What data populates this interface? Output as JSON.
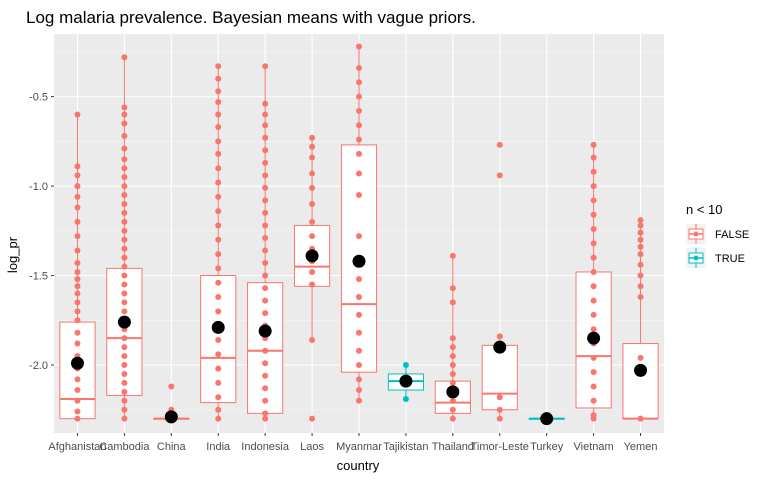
{
  "chart_data": {
    "type": "boxplot",
    "title": "Log malaria prevalence. Bayesian means with vague priors.",
    "xlabel": "country",
    "ylabel": "log_pr",
    "ylim": [
      -2.38,
      -0.15
    ],
    "yticks": [
      -2.0,
      -1.5,
      -1.0,
      -0.5
    ],
    "ytick_labels": [
      "-2.0",
      "-1.5",
      "-1.0",
      "-0.5"
    ],
    "grid": true,
    "legend": {
      "title": "n < 10",
      "position": "right",
      "entries": [
        {
          "label": "FALSE",
          "color": "#F8766D"
        },
        {
          "label": "TRUE",
          "color": "#00BFC4"
        }
      ]
    },
    "colors": {
      "FALSE": "#F8766D",
      "TRUE": "#00BFC4",
      "mean": "#000000",
      "panel": "#EBEBEB"
    },
    "categories": [
      "Afghanistan",
      "Cambodia",
      "China",
      "India",
      "Indonesia",
      "Laos",
      "Myanmar",
      "Tajikistan",
      "Thailand",
      "Timor-Leste",
      "Turkey",
      "Vietnam",
      "Yemen"
    ],
    "boxes": [
      {
        "country": "Afghanistan",
        "group": "FALSE",
        "whisker_low": -2.3,
        "q1": -2.3,
        "median": -2.19,
        "q3": -1.76,
        "whisker_high": -0.6,
        "mean": -1.99,
        "points": [
          -0.6,
          -0.89,
          -0.94,
          -1.0,
          -1.06,
          -1.12,
          -1.2,
          -1.28,
          -1.36,
          -1.43,
          -1.48,
          -1.52,
          -1.56,
          -1.6,
          -1.65,
          -1.7,
          -1.75,
          -1.82,
          -1.88,
          -1.95,
          -2.02,
          -2.08,
          -2.14,
          -2.2,
          -2.26,
          -2.3
        ]
      },
      {
        "country": "Cambodia",
        "group": "FALSE",
        "whisker_low": -2.3,
        "q1": -2.17,
        "median": -1.85,
        "q3": -1.46,
        "whisker_high": -0.28,
        "mean": -1.76,
        "points": [
          -0.28,
          -0.56,
          -0.6,
          -0.65,
          -0.72,
          -0.79,
          -0.85,
          -0.9,
          -0.95,
          -1.0,
          -1.05,
          -1.1,
          -1.15,
          -1.2,
          -1.25,
          -1.3,
          -1.35,
          -1.4,
          -1.45,
          -1.5,
          -1.55,
          -1.6,
          -1.65,
          -1.7,
          -1.75,
          -1.8,
          -1.85,
          -1.9,
          -1.95,
          -2.0,
          -2.05,
          -2.1,
          -2.15,
          -2.2,
          -2.25,
          -2.3
        ]
      },
      {
        "country": "China",
        "group": "FALSE",
        "whisker_low": -2.3,
        "q1": -2.3,
        "median": -2.3,
        "q3": -2.3,
        "whisker_high": -2.3,
        "mean": -2.29,
        "points": [
          -2.12,
          -2.25,
          -2.28,
          -2.3
        ]
      },
      {
        "country": "India",
        "group": "FALSE",
        "whisker_low": -2.3,
        "q1": -2.21,
        "median": -1.96,
        "q3": -1.5,
        "whisker_high": -0.33,
        "mean": -1.79,
        "points": [
          -0.33,
          -0.4,
          -0.47,
          -0.53,
          -0.6,
          -0.67,
          -0.75,
          -0.82,
          -0.9,
          -0.98,
          -1.06,
          -1.14,
          -1.22,
          -1.3,
          -1.38,
          -1.46,
          -1.54,
          -1.62,
          -1.7,
          -1.78,
          -1.86,
          -1.94,
          -2.02,
          -2.1,
          -2.18,
          -2.25,
          -2.3
        ]
      },
      {
        "country": "Indonesia",
        "group": "FALSE",
        "whisker_low": -2.3,
        "q1": -2.27,
        "median": -1.92,
        "q3": -1.54,
        "whisker_high": -0.33,
        "mean": -1.81,
        "points": [
          -0.33,
          -0.54,
          -0.6,
          -0.66,
          -0.73,
          -0.8,
          -0.87,
          -0.94,
          -1.01,
          -1.08,
          -1.15,
          -1.22,
          -1.29,
          -1.36,
          -1.43,
          -1.5,
          -1.57,
          -1.64,
          -1.71,
          -1.78,
          -1.85,
          -1.92,
          -1.99,
          -2.06,
          -2.13,
          -2.2,
          -2.27,
          -2.3
        ]
      },
      {
        "country": "Laos",
        "group": "FALSE",
        "whisker_low": -1.86,
        "q1": -1.56,
        "median": -1.45,
        "q3": -1.22,
        "whisker_high": -0.73,
        "mean": -1.39,
        "points": [
          -0.73,
          -0.78,
          -0.84,
          -0.93,
          -1.01,
          -1.1,
          -1.2,
          -1.28,
          -1.35,
          -1.42,
          -1.48,
          -1.55,
          -1.86,
          -2.3
        ]
      },
      {
        "country": "Myanmar",
        "group": "FALSE",
        "whisker_low": -2.2,
        "q1": -2.04,
        "median": -1.66,
        "q3": -0.77,
        "whisker_high": -0.22,
        "mean": -1.42,
        "points": [
          -0.22,
          -0.34,
          -0.42,
          -0.5,
          -0.58,
          -0.66,
          -0.74,
          -0.82,
          -0.93,
          -1.05,
          -1.28,
          -1.43,
          -1.52,
          -1.62,
          -1.72,
          -1.82,
          -1.92,
          -2.0,
          -2.08,
          -2.14,
          -2.2
        ]
      },
      {
        "country": "Tajikistan",
        "group": "TRUE",
        "whisker_low": -2.19,
        "q1": -2.14,
        "median": -2.09,
        "q3": -2.05,
        "whisker_high": -2.0,
        "mean": -2.09,
        "points": [
          -2.0,
          -2.09,
          -2.19
        ]
      },
      {
        "country": "Thailand",
        "group": "FALSE",
        "whisker_low": -2.3,
        "q1": -2.27,
        "median": -2.21,
        "q3": -2.09,
        "whisker_high": -1.39,
        "mean": -2.15,
        "points": [
          -1.39,
          -1.57,
          -1.65,
          -1.85,
          -1.9,
          -1.95,
          -2.0,
          -2.05,
          -2.1,
          -2.15,
          -2.2,
          -2.25,
          -2.3
        ]
      },
      {
        "country": "Timor-Leste",
        "group": "FALSE",
        "whisker_low": -2.3,
        "q1": -2.25,
        "median": -2.16,
        "q3": -1.89,
        "whisker_high": -1.84,
        "mean": -1.9,
        "points": [
          -0.77,
          -0.94,
          -1.84,
          -1.91,
          -2.18,
          -2.25,
          -2.3
        ]
      },
      {
        "country": "Turkey",
        "group": "TRUE",
        "whisker_low": -2.3,
        "q1": -2.3,
        "median": -2.3,
        "q3": -2.3,
        "whisker_high": -2.3,
        "mean": -2.3,
        "points": [
          -2.3
        ]
      },
      {
        "country": "Vietnam",
        "group": "FALSE",
        "whisker_low": -2.3,
        "q1": -2.24,
        "median": -1.95,
        "q3": -1.48,
        "whisker_high": -0.77,
        "mean": -1.85,
        "points": [
          -0.77,
          -0.84,
          -0.92,
          -1.0,
          -1.08,
          -1.16,
          -1.24,
          -1.32,
          -1.4,
          -1.48,
          -1.56,
          -1.64,
          -1.72,
          -1.8,
          -1.88,
          -1.96,
          -2.04,
          -2.12,
          -2.2,
          -2.28,
          -2.3
        ]
      },
      {
        "country": "Yemen",
        "group": "FALSE",
        "whisker_low": -2.3,
        "q1": -2.3,
        "median": -2.3,
        "q3": -1.88,
        "whisker_high": -1.19,
        "mean": -2.03,
        "points": [
          -1.19,
          -1.22,
          -1.26,
          -1.3,
          -1.34,
          -1.38,
          -1.44,
          -1.5,
          -1.56,
          -1.62,
          -1.96,
          -2.3
        ]
      }
    ]
  }
}
